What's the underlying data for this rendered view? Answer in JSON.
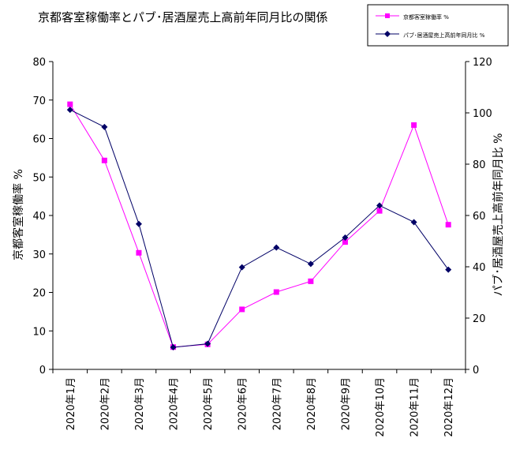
{
  "chart_data": {
    "type": "line",
    "title": "京都客室稼働率とパブ･居酒屋売上高前年同月比の関係",
    "categories": [
      "2020年1月",
      "2020年2月",
      "2020年3月",
      "2020年4月",
      "2020年5月",
      "2020年6月",
      "2020年7月",
      "2020年8月",
      "2020年9月",
      "2020年10月",
      "2020年11月",
      "2020年12月"
    ],
    "y_left": {
      "label": "京都客室稼働率 %",
      "ylim": [
        0,
        80
      ],
      "ticks": [
        0,
        10,
        20,
        30,
        40,
        50,
        60,
        70,
        80
      ]
    },
    "y_right": {
      "label": "パブ･居酒屋売上高前年同月比 %",
      "ylim": [
        0,
        120
      ],
      "ticks": [
        0,
        20,
        40,
        60,
        80,
        100,
        120
      ]
    },
    "series": [
      {
        "name": "京都客室稼働率 %",
        "axis": "left",
        "color": "#ff00ff",
        "marker": "square",
        "values": [
          68.9,
          54.3,
          30.3,
          5.8,
          6.5,
          15.6,
          20.1,
          22.9,
          33.1,
          41.2,
          63.5,
          37.6
        ]
      },
      {
        "name": "パブ･居酒屋売上高前年同月比 %",
        "axis": "right",
        "color": "#000066",
        "marker": "diamond",
        "values": [
          101.2,
          94.5,
          56.7,
          8.6,
          10.0,
          39.8,
          47.5,
          41.1,
          51.4,
          63.9,
          57.4,
          38.9
        ]
      }
    ],
    "legend": {
      "position": "top-right"
    },
    "grid": false
  }
}
